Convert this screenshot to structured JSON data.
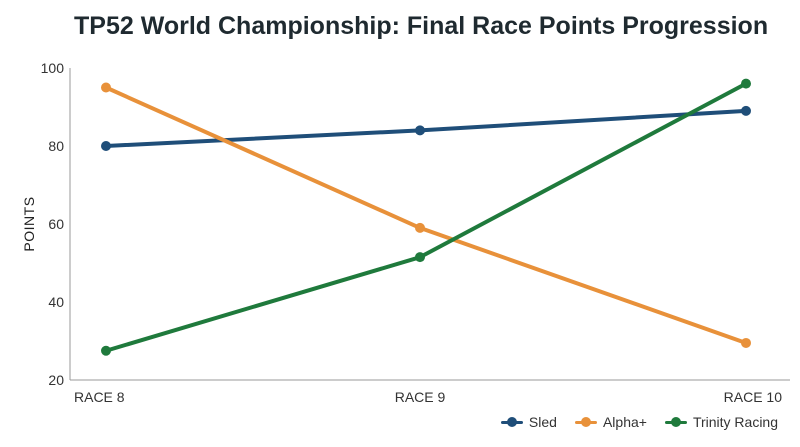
{
  "chart_data": {
    "type": "line",
    "title": "TP52 World Championship: Final Race Points Progression",
    "xlabel": "",
    "ylabel": "POINTS",
    "categories": [
      "RACE 8",
      "RACE 9",
      "RACE 10"
    ],
    "ylim": [
      20,
      100
    ],
    "yticks": [
      20,
      40,
      60,
      80,
      100
    ],
    "grid": false,
    "legend": "bottom-right",
    "series": [
      {
        "name": "Sled",
        "color": "#1f4e79",
        "values": [
          80,
          84,
          89
        ]
      },
      {
        "name": "Alpha+",
        "color": "#e8913a",
        "values": [
          95,
          59,
          29.5
        ]
      },
      {
        "name": "Trinity Racing",
        "color": "#1f7a3c",
        "values": [
          27.5,
          51.5,
          96
        ]
      }
    ]
  }
}
